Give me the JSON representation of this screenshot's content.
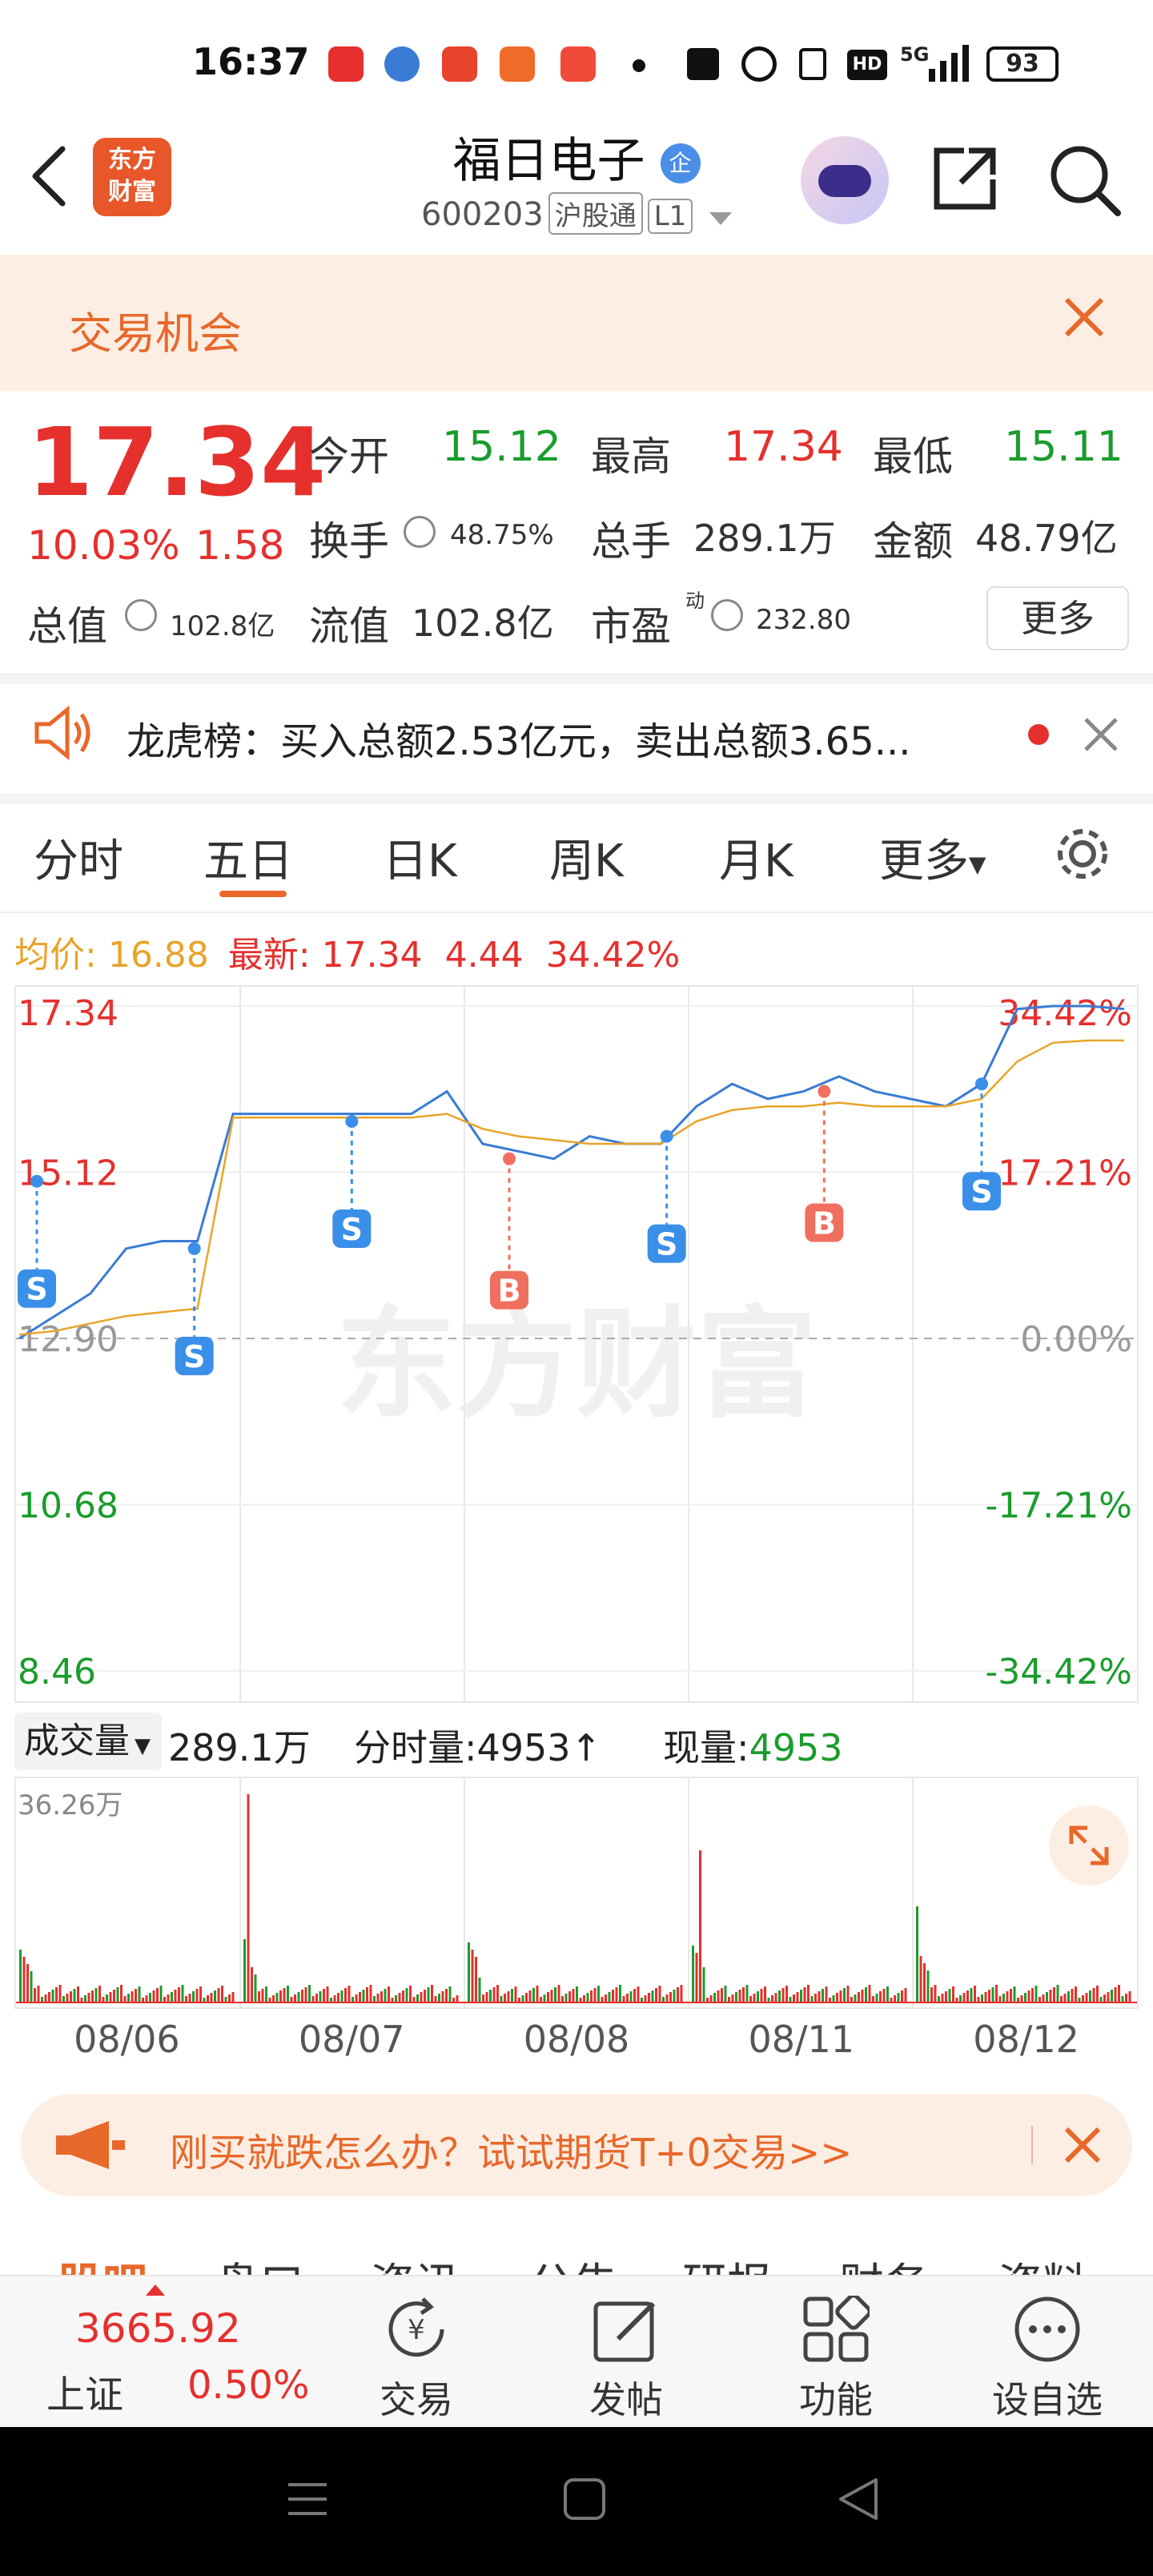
{
  "status_bar": {
    "time": "16:37",
    "network": "5G",
    "battery": "93"
  },
  "header": {
    "back_icon": "chevron-left-icon",
    "app_logo": "东方\n财富",
    "stock_name": "福日电子",
    "badge": "企",
    "stock_code": "600203",
    "market_tag": "沪股通",
    "level_tag": "L1",
    "share_icon": "share-icon",
    "search_icon": "search-icon"
  },
  "opportunity": {
    "label": "交易机会"
  },
  "quote": {
    "price": "17.34",
    "change_pct": "10.03%",
    "change": "1.58",
    "open_label": "今开",
    "open": "15.12",
    "high_label": "最高",
    "high": "17.34",
    "low_label": "最低",
    "low": "15.11",
    "turnover_label": "换手",
    "turnover": "48.75%",
    "volume_label": "总手",
    "volume": "289.1万",
    "amount_label": "金额",
    "amount": "48.79亿",
    "mktcap_label": "总值",
    "mktcap": "102.8亿",
    "float_label": "流值",
    "float": "102.8亿",
    "pe_label": "市盈",
    "pe_sup": "动",
    "pe": "232.80",
    "more_button": "更多"
  },
  "news": {
    "text": "龙虎榜：买入总额2.53亿元，卖出总额3.65..."
  },
  "tabs": [
    "分时",
    "五日",
    "日K",
    "周K",
    "月K",
    "更多"
  ],
  "active_tab": "五日",
  "chart_info": {
    "avg_label": "均价:",
    "avg": "16.88",
    "latest_label": "最新:",
    "latest": "17.34",
    "latest_chg": "4.44",
    "latest_pct": "34.42%"
  },
  "chart_data": {
    "type": "line",
    "y_labels_left": [
      "17.34",
      "15.12",
      "12.90",
      "10.68",
      "8.46"
    ],
    "y_labels_right": [
      "34.42%",
      "17.21%",
      "0.00%",
      "-17.21%",
      "-34.42%"
    ],
    "ylim": [
      8.46,
      17.34
    ],
    "baseline": 12.9,
    "x_labels": [
      "08/06",
      "08/07",
      "08/08",
      "08/11",
      "08/12"
    ],
    "watermark": "东方财富",
    "series": [
      {
        "values": [
          12.9,
          13.2,
          13.5,
          14.1,
          14.2,
          14.2,
          15.9,
          15.9,
          15.9,
          15.9,
          15.9,
          15.9,
          16.2,
          15.5,
          15.4,
          15.3,
          15.6,
          15.5,
          15.5,
          16.0,
          16.3,
          16.1,
          16.2,
          16.4,
          16.2,
          16.1,
          16.0,
          16.3,
          17.3,
          17.34,
          17.34,
          17.3
        ]
      },
      {
        "values": [
          12.95,
          13.0,
          13.1,
          13.2,
          13.25,
          13.3,
          15.85,
          15.85,
          15.85,
          15.85,
          15.85,
          15.85,
          15.9,
          15.7,
          15.6,
          15.55,
          15.5,
          15.5,
          15.5,
          15.8,
          15.95,
          16.0,
          16.0,
          16.05,
          16.0,
          16.0,
          16.0,
          16.1,
          16.6,
          16.85,
          16.88,
          16.88
        ]
      }
    ],
    "markers": [
      {
        "label": "S",
        "price": 15.0
      },
      {
        "label": "S",
        "price": 14.1
      },
      {
        "label": "S",
        "price": 15.8
      },
      {
        "label": "B",
        "price": 15.3
      },
      {
        "label": "S",
        "price": 15.6
      },
      {
        "label": "B",
        "price": 16.2
      },
      {
        "label": "S",
        "price": 16.3
      }
    ]
  },
  "volume": {
    "label": "成交量",
    "total": "289.1万",
    "minute_label": "分时量:",
    "minute": "4953",
    "now_label": "现量:",
    "now": "4953",
    "max": "36.26万"
  },
  "promo": {
    "text": "刚买就跌怎么办？试试期货T+0交易>>"
  },
  "bottom_tabs_partial": [
    "股吧",
    "盘口",
    "资讯",
    "公告",
    "研报",
    "财务",
    "资料"
  ],
  "bottom_nav": {
    "index_value": "3665.92",
    "index_name": "上证",
    "index_pct": "0.50%",
    "items": [
      {
        "label": "交易",
        "icon": "yen-refresh-icon"
      },
      {
        "label": "发帖",
        "icon": "edit-icon"
      },
      {
        "label": "功能",
        "icon": "grid-icon"
      },
      {
        "label": "设自选",
        "icon": "more-dots-icon"
      }
    ]
  },
  "colors": {
    "up": "#e5302d",
    "down": "#1a9c2c",
    "accent": "#e8682a",
    "avg_line": "#e8a42a",
    "price_line": "#3a7bd5"
  }
}
